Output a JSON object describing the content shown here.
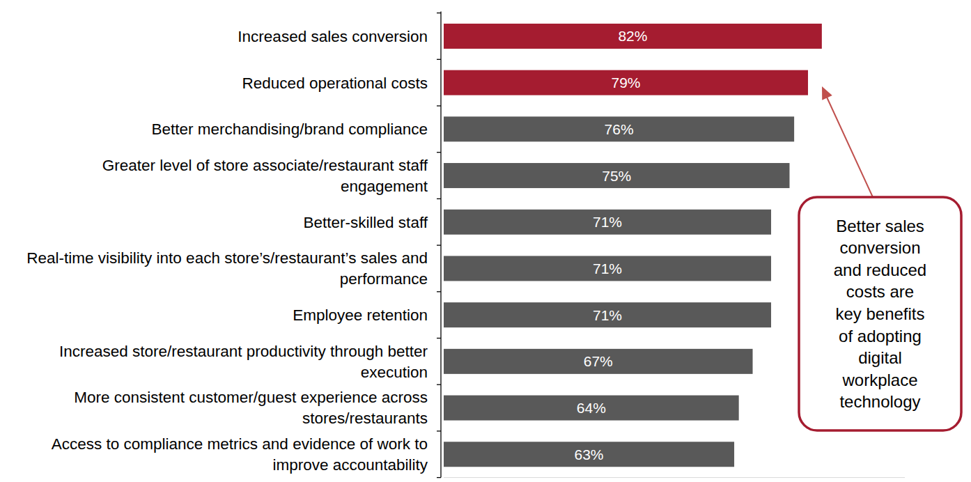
{
  "chart_data": {
    "type": "bar",
    "orientation": "horizontal",
    "categories": [
      "Increased sales conversion",
      "Reduced operational costs",
      "Better merchandising/brand compliance",
      "Greater level of store associate/restaurant staff engagement",
      "Better-skilled staff",
      "Real-time visibility into each store’s/restaurant’s sales and performance",
      "Employee retention",
      "Increased store/restaurant productivity through better execution",
      "More consistent customer/guest experience across stores/restaurants",
      "Access to compliance metrics and evidence of work to improve accountability"
    ],
    "values": [
      82,
      79,
      76,
      75,
      71,
      71,
      71,
      67,
      64,
      63
    ],
    "value_labels": [
      "82%",
      "79%",
      "76%",
      "75%",
      "71%",
      "71%",
      "71%",
      "67%",
      "64%",
      "63%"
    ],
    "colors": [
      "#a51c30",
      "#a51c30",
      "#595959",
      "#595959",
      "#595959",
      "#595959",
      "#595959",
      "#595959",
      "#595959",
      "#595959"
    ],
    "xlim": [
      0,
      100
    ],
    "xticks": [],
    "tick_labels": "y",
    "data_labels": true,
    "grid": false,
    "annotation": [
      "Better sales",
      "conversion",
      "and reduced",
      "costs are",
      "key benefits",
      "of adopting",
      "digital",
      "workplace",
      "technology"
    ]
  }
}
